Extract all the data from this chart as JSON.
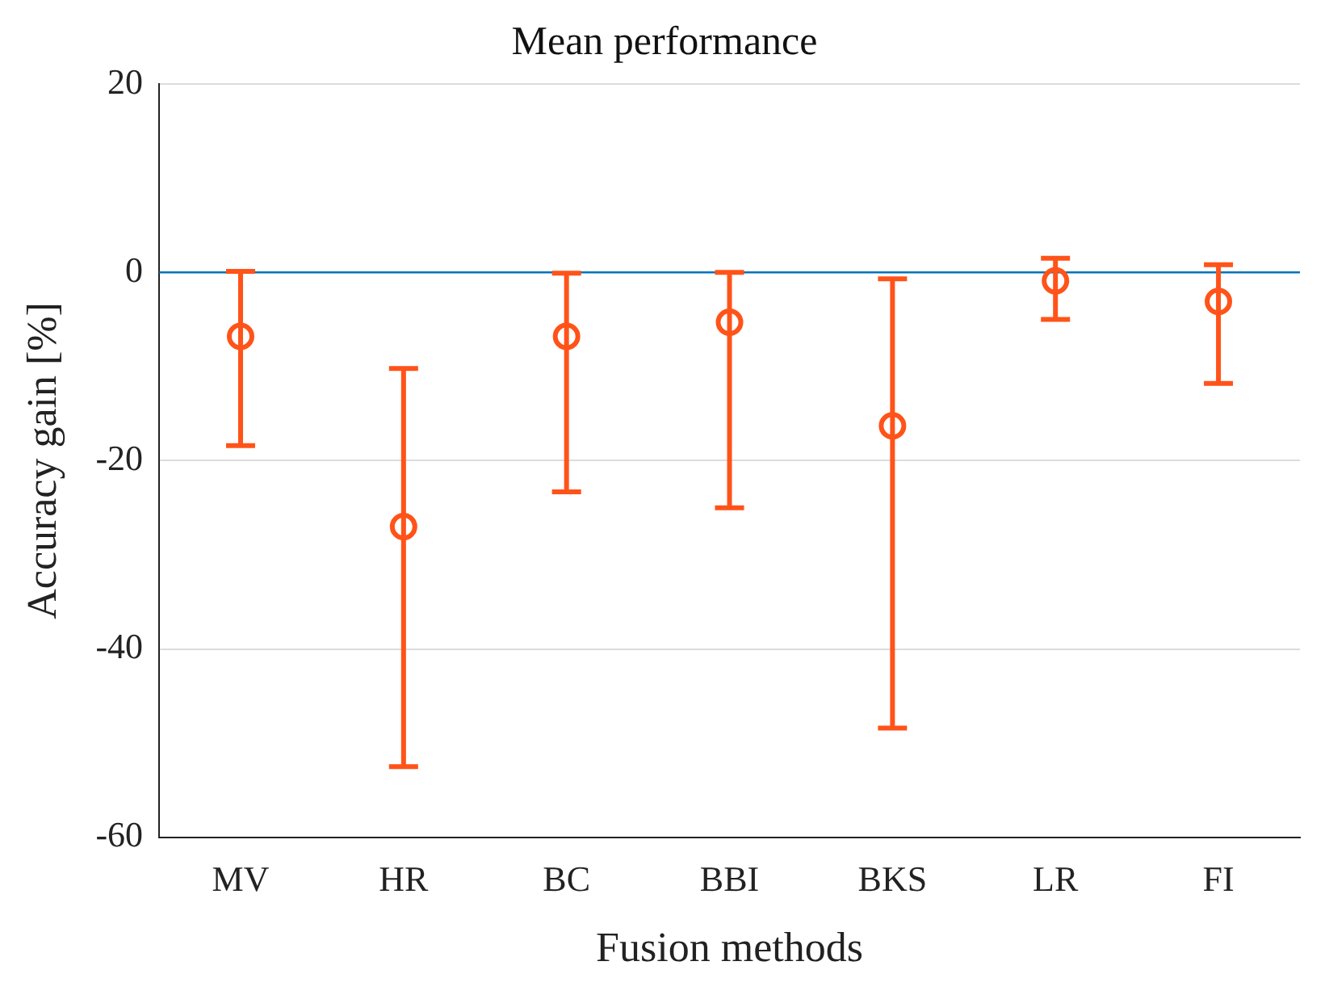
{
  "chart_data": {
    "type": "scatter",
    "title": "Mean performance",
    "xlabel": "Fusion methods",
    "ylabel": "Accuracy gain [%]",
    "categories": [
      "MV",
      "HR",
      "BC",
      "BBI",
      "BKS",
      "LR",
      "FI"
    ],
    "series": [
      {
        "color": "#ff5319",
        "values": [
          -6.8,
          -27,
          -6.8,
          -5.3,
          -16.3,
          -0.9,
          -3.1
        ],
        "errors": [
          [
            -18.4,
            0.1
          ],
          [
            -52.5,
            -10.2
          ],
          [
            -23.3,
            -0.1
          ],
          [
            -25,
            0
          ],
          [
            -48.4,
            -0.7
          ],
          [
            -5,
            1.5
          ],
          [
            -11.8,
            0.8
          ]
        ]
      }
    ],
    "ylim": [
      -60,
      20
    ],
    "yticks": [
      -60,
      -40,
      -20,
      0,
      20
    ],
    "grid": "y",
    "legend": false,
    "marker": "circle",
    "ref_lines": [
      {
        "axis": "y",
        "value": 0,
        "color": "#0072bd"
      }
    ]
  }
}
